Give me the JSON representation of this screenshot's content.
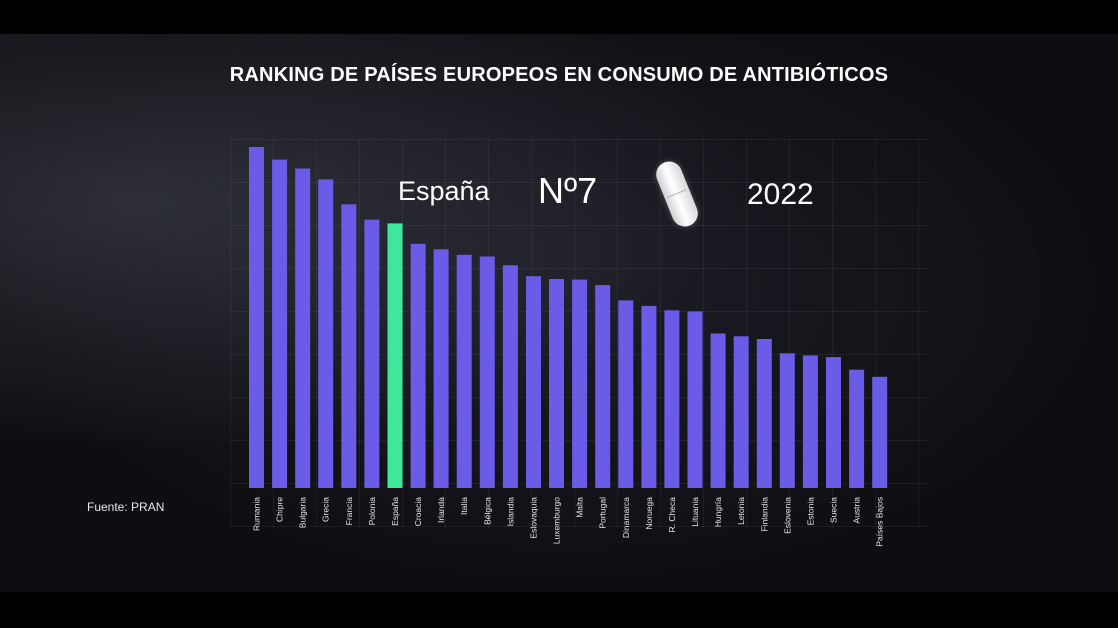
{
  "title": "RANKING DE PAÍSES EUROPEOS EN CONSUMO DE ANTIBIÓTICOS",
  "source": "Fuente: PRAN",
  "overlay": {
    "country": "España",
    "rank": "Nº7",
    "year": "2022"
  },
  "colors": {
    "bar": "#6a5ce6",
    "highlight": "#3ee89a",
    "background": "#101014"
  },
  "icons": {
    "pill": "pill-icon"
  },
  "chart_data": {
    "type": "bar",
    "title": "RANKING DE PAÍSES EUROPEOS EN CONSUMO DE ANTIBIÓTICOS",
    "xlabel": "",
    "ylabel": "",
    "ylim": [
      0,
      100
    ],
    "highlight": "España",
    "categories": [
      "Rumania",
      "Chipre",
      "Bulgaria",
      "Grecia",
      "Francia",
      "Polonia",
      "España",
      "Croacia",
      "Irlanda",
      "Italia",
      "Bélgica",
      "Islandia",
      "Eslovaquia",
      "Luxemburgo",
      "Malta",
      "Portugal",
      "Dinamarca",
      "Noruega",
      "R. Checa",
      "Lituania",
      "Hungría",
      "Letonia",
      "Finlandia",
      "Eslovenia",
      "Estonia",
      "Suecia",
      "Austria",
      "Países Bajos"
    ],
    "values": [
      100,
      96.3,
      93.7,
      90.5,
      83.2,
      78.7,
      77.6,
      71.6,
      70.0,
      68.4,
      67.9,
      65.3,
      62.1,
      61.3,
      61.1,
      59.5,
      55.0,
      53.4,
      52.1,
      51.8,
      45.3,
      44.5,
      43.7,
      39.5,
      38.9,
      38.4,
      34.7,
      32.6
    ]
  }
}
